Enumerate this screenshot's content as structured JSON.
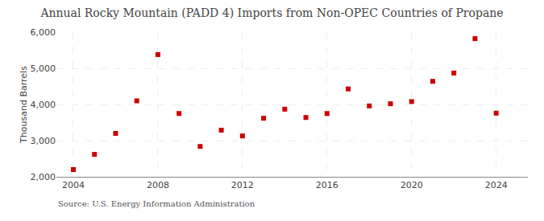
{
  "chart_data": {
    "type": "scatter",
    "title": "Annual Rocky Mountain (PADD 4) Imports from Non-OPEC Countries of Propane",
    "ylabel": "Thousand Barrels",
    "source": "Source: U.S. Energy Information Administration",
    "x": [
      2004,
      2005,
      2006,
      2007,
      2008,
      2009,
      2010,
      2011,
      2012,
      2013,
      2014,
      2015,
      2016,
      2017,
      2018,
      2019,
      2020,
      2021,
      2022,
      2023,
      2024
    ],
    "values": [
      2200,
      2620,
      3200,
      4100,
      5380,
      3750,
      2840,
      3290,
      3130,
      3620,
      3870,
      3640,
      3750,
      4430,
      3960,
      4020,
      4080,
      4640,
      4870,
      5820,
      3760
    ],
    "color": "#cc0000",
    "marker": "square",
    "xlim": [
      2003.2,
      2025.5
    ],
    "xticks": [
      2004,
      2008,
      2012,
      2016,
      2020,
      2024
    ],
    "ylim": [
      2000,
      6000
    ],
    "yticks": [
      {
        "value": 2000,
        "label": "2,000"
      },
      {
        "value": 3000,
        "label": "3,000"
      },
      {
        "value": 4000,
        "label": "4,000"
      },
      {
        "value": 5000,
        "label": "5,000"
      },
      {
        "value": 6000,
        "label": "6,000"
      }
    ],
    "grid": true
  }
}
